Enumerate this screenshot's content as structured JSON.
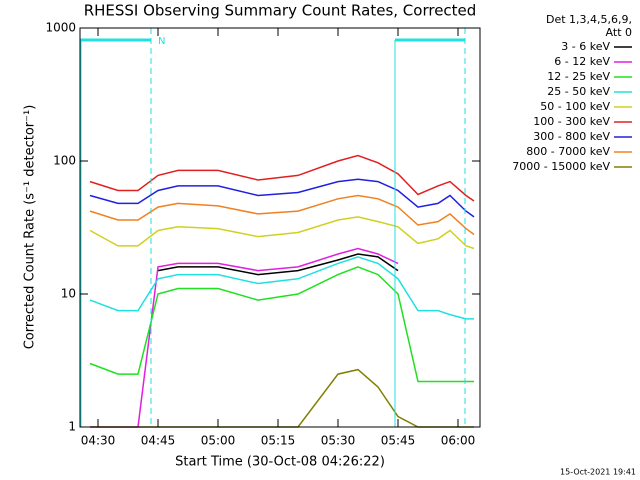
{
  "chart_data": {
    "type": "line",
    "title": "RHESSI Observing Summary Count Rates, Corrected",
    "x_label": "Start Time (30-Oct-08 04:26:22)",
    "y_label": "Corrected Count Rate (s⁻¹ detector⁻¹)",
    "legend_header": [
      "Det 1,3,4,5,6,9,",
      "Att 0"
    ],
    "annotation": "N",
    "footer": "15-Oct-2021 19:41",
    "log_y": true,
    "legend_position": "right",
    "xlim": [
      265.5,
      365.5
    ],
    "xticks": [
      {
        "value": 270,
        "label": "04:30"
      },
      {
        "value": 285,
        "label": "04:45"
      },
      {
        "value": 300,
        "label": "05:00"
      },
      {
        "value": 315,
        "label": "05:15"
      },
      {
        "value": 330,
        "label": "05:30"
      },
      {
        "value": 345,
        "label": "05:45"
      },
      {
        "value": 360,
        "label": "06:00"
      }
    ],
    "ylim": [
      1,
      1000
    ],
    "yticks": [
      1,
      10,
      100,
      1000
    ],
    "x": [
      268,
      275,
      280,
      285,
      290,
      300,
      310,
      320,
      330,
      335,
      340,
      345,
      350,
      355,
      358,
      362,
      364
    ],
    "series": [
      {
        "name": "3 - 6 keV",
        "color": "#000000",
        "values": [
          null,
          null,
          null,
          15,
          16,
          16,
          14,
          15,
          18,
          20,
          19,
          15,
          null,
          null,
          null,
          null,
          null
        ]
      },
      {
        "name": "6 - 12 keV",
        "color": "#e020e0",
        "values": [
          1,
          1,
          1,
          16,
          17,
          17,
          15,
          16,
          20,
          22,
          20,
          17,
          null,
          null,
          null,
          null,
          null
        ]
      },
      {
        "name": "12 - 25 keV",
        "color": "#20e020",
        "values": [
          3,
          2.5,
          2.5,
          10,
          11,
          11,
          9,
          10,
          14,
          16,
          14,
          10,
          2.2,
          2.2,
          2.2,
          2.2,
          2.2
        ]
      },
      {
        "name": "25 - 50 keV",
        "color": "#20e0e0",
        "values": [
          9,
          7.5,
          7.5,
          13,
          14,
          14,
          12,
          13,
          17,
          19,
          17,
          13,
          7.5,
          7.5,
          7,
          6.5,
          6.5
        ]
      },
      {
        "name": "50 - 100 keV",
        "color": "#d0d020",
        "values": [
          30,
          23,
          23,
          30,
          32,
          31,
          27,
          29,
          36,
          38,
          35,
          32,
          24,
          26,
          30,
          23,
          22
        ]
      },
      {
        "name": "100 - 300 keV",
        "color": "#e02020",
        "values": [
          70,
          60,
          60,
          78,
          85,
          85,
          72,
          78,
          100,
          110,
          97,
          80,
          56,
          65,
          70,
          55,
          50
        ]
      },
      {
        "name": "300 - 800 keV",
        "color": "#2020e0",
        "values": [
          55,
          48,
          48,
          60,
          65,
          65,
          55,
          58,
          70,
          73,
          70,
          60,
          45,
          48,
          55,
          42,
          38
        ]
      },
      {
        "name": "800 - 7000 keV",
        "color": "#f08020",
        "values": [
          42,
          36,
          36,
          45,
          48,
          46,
          40,
          42,
          52,
          55,
          52,
          45,
          33,
          35,
          40,
          31,
          28
        ]
      },
      {
        "name": "7000 - 15000 keV",
        "color": "#808000",
        "values": [
          1,
          1,
          1,
          1,
          1,
          1,
          1,
          1,
          2.5,
          2.7,
          2,
          1.2,
          1,
          1,
          1,
          1,
          1
        ]
      }
    ]
  }
}
